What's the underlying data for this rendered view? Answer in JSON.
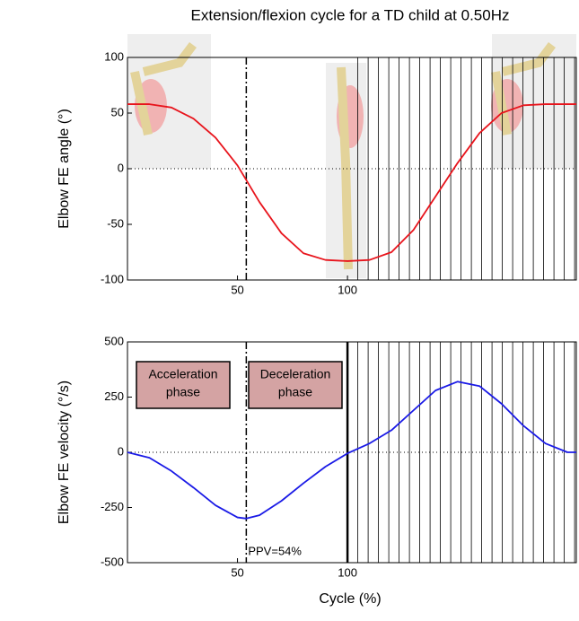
{
  "chart_data": [
    {
      "type": "line",
      "title": "Extension/flexion cycle for a TD child at 0.50Hz",
      "ylabel": "Elbow FE angle (°)",
      "x": [
        0,
        10,
        20,
        30,
        40,
        50,
        60,
        70,
        80,
        90,
        100,
        110,
        120,
        130,
        140,
        150,
        160,
        170,
        180,
        190,
        200,
        204
      ],
      "series": [
        {
          "color": "#e8141c",
          "values": [
            58,
            58,
            55,
            45,
            28,
            3,
            -30,
            -58,
            -76,
            -82,
            -83,
            -82,
            -75,
            -55,
            -25,
            5,
            32,
            50,
            57,
            58,
            58,
            58
          ]
        }
      ],
      "xlim": [
        0,
        204
      ],
      "xticks": [
        50,
        100
      ],
      "ylim": [
        -100,
        100
      ],
      "yticks": [
        -100,
        -50,
        0,
        50,
        100
      ],
      "vline": 54
    },
    {
      "type": "line",
      "ylabel": "Elbow FE velocity (°/s)",
      "xlabel": "Cycle (%)",
      "x": [
        0,
        10,
        20,
        30,
        40,
        50,
        54,
        60,
        70,
        80,
        90,
        100,
        110,
        120,
        130,
        140,
        150,
        160,
        170,
        180,
        190,
        200,
        204
      ],
      "series": [
        {
          "color": "#1a1ae6",
          "values": [
            0,
            -25,
            -85,
            -160,
            -240,
            -295,
            -300,
            -285,
            -220,
            -140,
            -65,
            -5,
            40,
            100,
            190,
            280,
            320,
            300,
            220,
            120,
            40,
            0,
            0
          ]
        }
      ],
      "xlim": [
        0,
        204
      ],
      "xticks": [
        50,
        100
      ],
      "ylim": [
        -500,
        500
      ],
      "yticks": [
        -500,
        -250,
        0,
        250,
        500
      ],
      "vline": 54,
      "annotation": "PPV=54%",
      "boxes": [
        [
          "Acceleration",
          "phase"
        ],
        [
          "Deceleration",
          "phase"
        ]
      ]
    }
  ]
}
